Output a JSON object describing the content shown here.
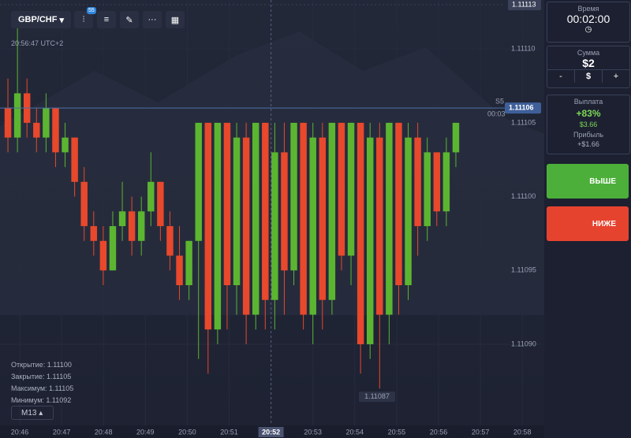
{
  "toolbar": {
    "pair": "GBP/CHF",
    "badge": "55"
  },
  "clock": "20:56:47 UTC+2",
  "chart_data": {
    "type": "candlestick",
    "open": [
      1.11106,
      1.11104,
      1.11107,
      1.11105,
      1.11104,
      1.11106,
      1.11103,
      1.11104,
      1.11101,
      1.11098,
      1.11097,
      1.11095,
      1.11098,
      1.11099,
      1.11097,
      1.11099,
      1.11101,
      1.11098,
      1.11096,
      1.11094,
      1.11097,
      1.11105,
      1.11091,
      1.11105,
      1.11094,
      1.11104,
      1.11092,
      1.11105,
      1.11093,
      1.11103,
      1.11095,
      1.11105,
      1.11092,
      1.11104,
      1.11093,
      1.11105,
      1.11096,
      1.11105,
      1.1109,
      1.11104,
      1.11092,
      1.11105,
      1.11094,
      1.11104,
      1.11098,
      1.11103,
      1.11099,
      1.11103
    ],
    "high": [
      1.11108,
      1.11112,
      1.11108,
      1.11106,
      1.11107,
      1.11106,
      1.11105,
      1.11104,
      1.11102,
      1.11099,
      1.11098,
      1.11099,
      1.11101,
      1.111,
      1.111,
      1.11103,
      1.11101,
      1.11099,
      1.11098,
      1.11097,
      1.11105,
      1.11105,
      1.11105,
      1.11105,
      1.11105,
      1.11105,
      1.11105,
      1.11105,
      1.11105,
      1.11105,
      1.11105,
      1.11105,
      1.11105,
      1.11105,
      1.11105,
      1.11105,
      1.11105,
      1.11105,
      1.11105,
      1.11105,
      1.11105,
      1.11105,
      1.11105,
      1.11105,
      1.11104,
      1.11103,
      1.11104,
      1.11105
    ],
    "low": [
      1.11103,
      1.11103,
      1.11104,
      1.11103,
      1.11103,
      1.11102,
      1.11102,
      1.111,
      1.11097,
      1.11096,
      1.11094,
      1.11095,
      1.11097,
      1.11096,
      1.11096,
      1.11098,
      1.11097,
      1.11095,
      1.11093,
      1.11093,
      1.11089,
      1.11088,
      1.1109,
      1.11091,
      1.11092,
      1.1109,
      1.11091,
      1.11091,
      1.11091,
      1.11092,
      1.11094,
      1.11091,
      1.1109,
      1.11091,
      1.11092,
      1.11095,
      1.11094,
      1.11088,
      1.11089,
      1.11087,
      1.1109,
      1.11092,
      1.11093,
      1.11096,
      1.11097,
      1.11098,
      1.11098,
      1.11102
    ],
    "close": [
      1.11104,
      1.11107,
      1.11105,
      1.11104,
      1.11106,
      1.11103,
      1.11104,
      1.11101,
      1.11098,
      1.11097,
      1.11095,
      1.11098,
      1.11099,
      1.11097,
      1.11099,
      1.11101,
      1.11098,
      1.11096,
      1.11094,
      1.11097,
      1.11105,
      1.11091,
      1.11105,
      1.11094,
      1.11104,
      1.11092,
      1.11105,
      1.11093,
      1.11103,
      1.11095,
      1.11105,
      1.11092,
      1.11104,
      1.11093,
      1.11105,
      1.11096,
      1.11105,
      1.1109,
      1.11104,
      1.11092,
      1.11105,
      1.11094,
      1.11104,
      1.11098,
      1.11103,
      1.11099,
      1.11103,
      1.11105
    ],
    "up_color": "#5cb531",
    "down_color": "#e8482c",
    "ylim": [
      1.110845,
      1.11113
    ],
    "yticks": [
      {
        "value": 1.1111,
        "label": "1.11110"
      },
      1.11105,
      {
        "value": 1.111,
        "label": "1.11100"
      },
      1.11095,
      {
        "value": 1.1109,
        "label": "1.11090"
      }
    ],
    "x_labels": [
      "20:46",
      "20:47",
      "20:48",
      "20:49",
      "20:50",
      "20:51",
      "20:52",
      "20:53",
      "20:54",
      "20:55",
      "20:56",
      "20:57",
      "20:58"
    ],
    "highlighted_tick": 6,
    "current_price": 1.11106,
    "top_price": 1.11113,
    "low_price": 1.11087,
    "timeframe": "S5",
    "countdown": "00:03"
  },
  "info": {
    "lines": [
      "Открытие: 1.11100",
      "Закрытие: 1.11105",
      "Максимум: 1.11105",
      "Минимум: 1.11092"
    ],
    "period": "M13"
  },
  "panel": {
    "time_label": "Время",
    "time": "00:02:00",
    "sum_label": "Сумма",
    "sum": "$2",
    "minus": "-",
    "dollar": "$",
    "plus": "+",
    "payout_label": "Выплата",
    "payout": "+83%",
    "payout_sum": "$3.66",
    "profit_label": "Прибыль",
    "profit": "+$1.66",
    "up": "ВЫШЕ",
    "down": "НИЖЕ"
  }
}
